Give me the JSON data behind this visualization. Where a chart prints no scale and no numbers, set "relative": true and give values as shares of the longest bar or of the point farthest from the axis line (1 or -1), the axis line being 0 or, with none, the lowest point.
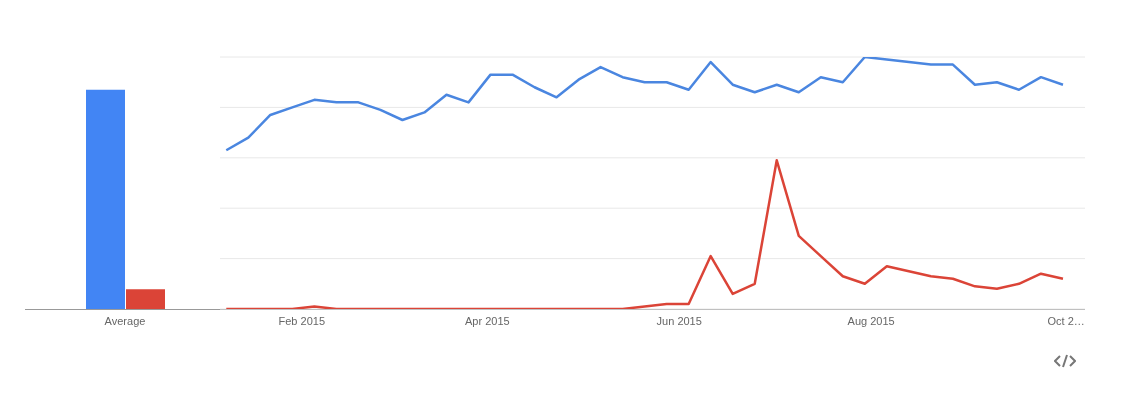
{
  "chart_data": [
    {
      "type": "bar",
      "relative": true,
      "categories": [
        "Average"
      ],
      "series": [
        {
          "color": "#4285f4",
          "values": [
            1
          ]
        },
        {
          "color": "#db4437",
          "values": [
            0.09
          ]
        }
      ]
    },
    {
      "type": "line",
      "relative": true,
      "grid": "y",
      "marker": "none",
      "line_style": "solid",
      "x": [
        "2015-01-08",
        "2015-01-15",
        "2015-01-22",
        "2015-01-29",
        "2015-02-05",
        "2015-02-12",
        "2015-02-19",
        "2015-02-26",
        "2015-03-05",
        "2015-03-12",
        "2015-03-19",
        "2015-03-26",
        "2015-04-02",
        "2015-04-09",
        "2015-04-16",
        "2015-04-23",
        "2015-04-30",
        "2015-05-07",
        "2015-05-14",
        "2015-05-21",
        "2015-05-28",
        "2015-06-04",
        "2015-06-11",
        "2015-06-18",
        "2015-06-25",
        "2015-07-02",
        "2015-07-09",
        "2015-07-16",
        "2015-07-23",
        "2015-07-30",
        "2015-08-06",
        "2015-08-13",
        "2015-08-20",
        "2015-08-27",
        "2015-09-03",
        "2015-09-10",
        "2015-09-17",
        "2015-09-24",
        "2015-10-01"
      ],
      "xlim": [
        "2015-01-06",
        "2015-10-08"
      ],
      "xticks": [
        {
          "value": "2015-02-01",
          "label": "Feb 2015"
        },
        {
          "value": "2015-04-01",
          "label": "Apr 2015"
        },
        {
          "value": "2015-06-01",
          "label": "Jun 2015"
        },
        {
          "value": "2015-08-01",
          "label": "Aug 2015"
        },
        {
          "value": "2015-10-02",
          "label": "Oct 2…"
        }
      ],
      "series": [
        {
          "color": "#4a86e0",
          "values": [
            0.63,
            0.68,
            0.77,
            0.8,
            0.83,
            0.82,
            0.82,
            0.79,
            0.75,
            0.78,
            0.85,
            0.82,
            0.93,
            0.93,
            0.88,
            0.84,
            0.91,
            0.96,
            0.92,
            0.9,
            0.9,
            0.87,
            0.98,
            0.89,
            0.86,
            0.89,
            0.86,
            0.92,
            0.9,
            1,
            0.99,
            0.98,
            0.97,
            0.97,
            0.89,
            0.9,
            0.87,
            0.92,
            0.89
          ]
        },
        {
          "color": "#db4437",
          "values": [
            0,
            0,
            0,
            0,
            0.01,
            0,
            0,
            0,
            0,
            0,
            0,
            0,
            0,
            0,
            0,
            0,
            0,
            0,
            0,
            0.01,
            0.02,
            0.02,
            0.21,
            0.06,
            0.1,
            0.59,
            0.29,
            0.21,
            0.13,
            0.1,
            0.17,
            0.15,
            0.13,
            0.12,
            0.09,
            0.08,
            0.1,
            0.14,
            0.12
          ]
        }
      ]
    }
  ]
}
